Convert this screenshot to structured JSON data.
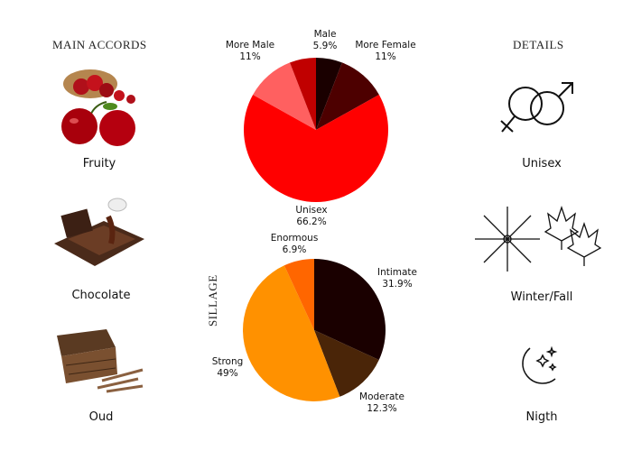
{
  "left": {
    "title": "MAIN ACCORDS",
    "accords": [
      {
        "label": "Fruity",
        "icon": "cherries-image"
      },
      {
        "label": "Chocolate",
        "icon": "chocolate-image"
      },
      {
        "label": "Oud",
        "icon": "oud-wood-image"
      }
    ]
  },
  "right": {
    "title": "DETAILS",
    "details": [
      {
        "label": "Unisex",
        "icon": "gender-symbols-icon"
      },
      {
        "label": "Winter/Fall",
        "icon": "snowflake-maple-leaves-icon"
      },
      {
        "label": "Nigth",
        "icon": "moon-stars-icon"
      }
    ]
  },
  "sillage_label": "SILLAGE",
  "chart_data": [
    {
      "type": "pie",
      "title": "",
      "slices": [
        {
          "label": "",
          "value": 5.9,
          "pct": "",
          "color": "#1a0000"
        },
        {
          "label": "More Female",
          "value": 11,
          "pct": "11%",
          "color": "#4d0000"
        },
        {
          "label": "Unisex",
          "value": 66.2,
          "pct": "66.2%",
          "color": "#ff0000"
        },
        {
          "label": "More Male",
          "value": 11,
          "pct": "11%",
          "color": "#ff6060"
        },
        {
          "label": "Male",
          "value": 5.9,
          "pct": "5.9%",
          "color": "#c00000"
        }
      ]
    },
    {
      "type": "pie",
      "title": "SILLAGE",
      "slices": [
        {
          "label": "Intimate",
          "value": 31.9,
          "pct": "31.9%",
          "color": "#1a0000"
        },
        {
          "label": "Moderate",
          "value": 12.3,
          "pct": "12.3%",
          "color": "#4a2508"
        },
        {
          "label": "Strong",
          "value": 49,
          "pct": "49%",
          "color": "#ff9100"
        },
        {
          "label": "Enormous",
          "value": 6.9,
          "pct": "6.9%",
          "color": "#ff6600"
        }
      ]
    }
  ]
}
